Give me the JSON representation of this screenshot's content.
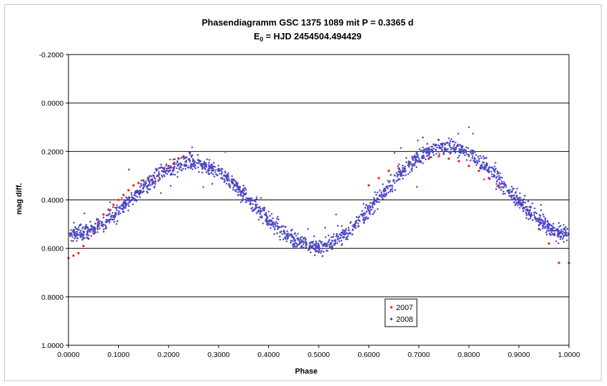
{
  "chart_data": {
    "type": "scatter",
    "title_line1": "Phasendiagramm GSC 1375 1089 mit P = 0.3365 d",
    "title_line2_prefix": "E",
    "title_line2_sub": "0",
    "title_line2_rest": " = HJD 2454504.494429",
    "xlabel": "Phase",
    "ylabel": "mag diff.",
    "xlim": [
      0,
      1
    ],
    "ylim": [
      -0.2,
      1.0
    ],
    "y_inverted": true,
    "x_ticks": [
      "0.0000",
      "0.1000",
      "0.2000",
      "0.3000",
      "0.4000",
      "0.5000",
      "0.6000",
      "0.7000",
      "0.8000",
      "0.9000",
      "1.0000"
    ],
    "y_ticks": [
      "-0.2000",
      "0.0000",
      "0.2000",
      "0.4000",
      "0.6000",
      "0.8000",
      "1.0000"
    ],
    "grid": "horizontal",
    "legend_position": "bottom-center",
    "series": [
      {
        "name": "2007",
        "color": "#ff2020",
        "marker": "diamond",
        "x": [
          0.0,
          0.01,
          0.02,
          0.03,
          0.04,
          0.05,
          0.06,
          0.07,
          0.08,
          0.09,
          0.1,
          0.11,
          0.12,
          0.13,
          0.14,
          0.15,
          0.16,
          0.17,
          0.18,
          0.19,
          0.2,
          0.21,
          0.22,
          0.23,
          0.6,
          0.62,
          0.64,
          0.66,
          0.68,
          0.7,
          0.72,
          0.74,
          0.76,
          0.78,
          0.8,
          0.82,
          0.84,
          0.86,
          0.88,
          0.9,
          0.92,
          0.94,
          0.96,
          0.98,
          1.0
        ],
        "y": [
          0.64,
          0.63,
          0.62,
          0.59,
          0.56,
          0.53,
          0.49,
          0.46,
          0.44,
          0.42,
          0.4,
          0.38,
          0.36,
          0.34,
          0.33,
          0.32,
          0.31,
          0.3,
          0.32,
          0.27,
          0.26,
          0.25,
          0.23,
          0.22,
          0.34,
          0.31,
          0.28,
          0.27,
          0.25,
          0.24,
          0.23,
          0.22,
          0.23,
          0.24,
          0.26,
          0.28,
          0.31,
          0.34,
          0.37,
          0.41,
          0.46,
          0.52,
          0.58,
          0.66,
          0.66
        ]
      },
      {
        "name": "2008",
        "color": "#4a48c0",
        "marker": "diamond",
        "x": [],
        "y": []
      }
    ]
  }
}
